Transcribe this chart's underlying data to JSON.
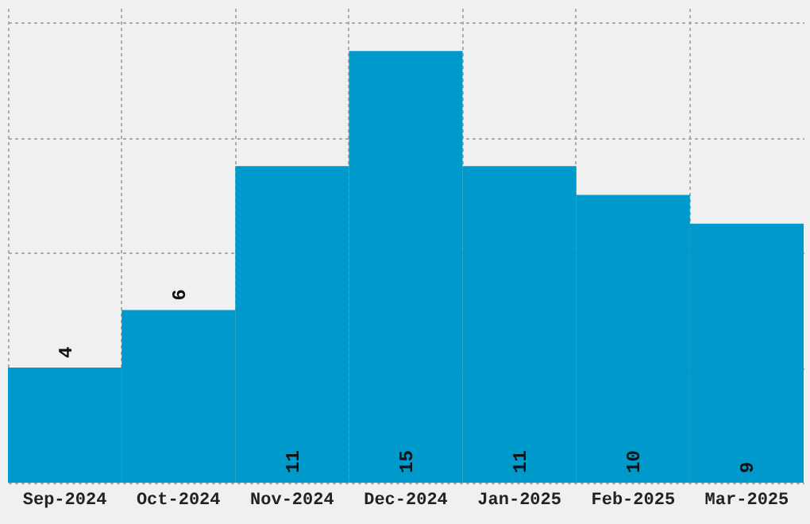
{
  "chart_data": {
    "type": "bar",
    "categories": [
      "Sep-2024",
      "Oct-2024",
      "Nov-2024",
      "Dec-2024",
      "Jan-2025",
      "Feb-2025",
      "Mar-2025"
    ],
    "values": [
      4,
      6,
      11,
      15,
      11,
      10,
      9
    ],
    "color": "#0099cc",
    "ylim": [
      0,
      16.5
    ],
    "yticks": [
      0,
      4,
      8,
      12,
      16
    ],
    "grid": true,
    "tick_labels": "x",
    "data_labels": true
  }
}
